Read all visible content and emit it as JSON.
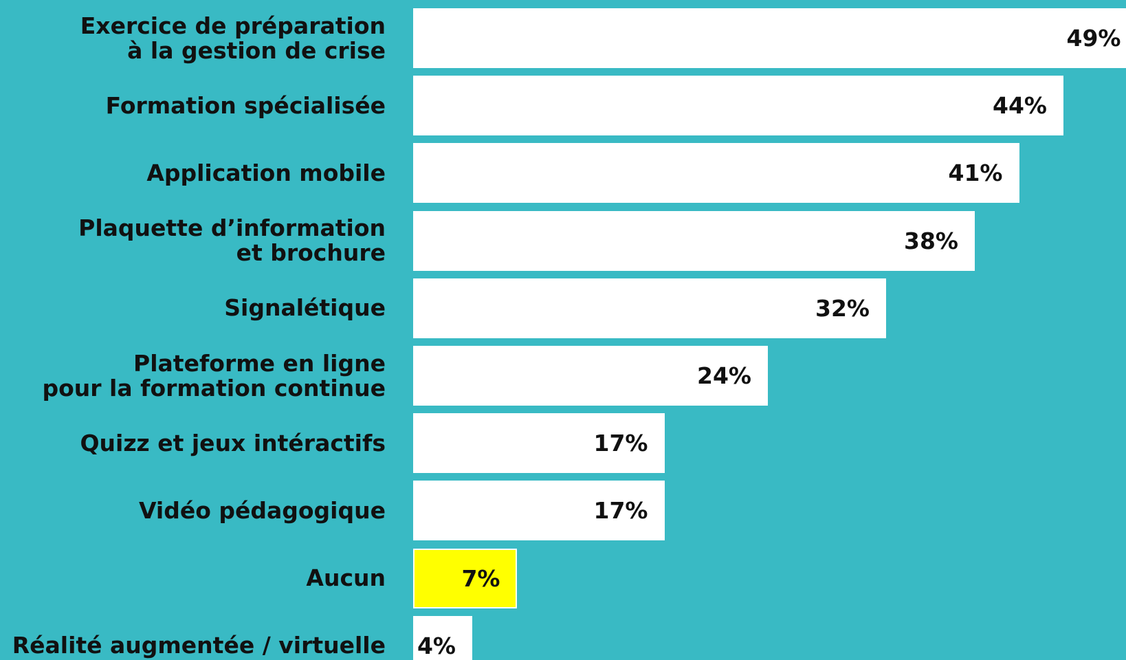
{
  "chart_data": {
    "type": "barh",
    "categories": [
      "Exercice de préparation\nà la gestion de crise",
      "Formation spécialisée",
      "Application mobile",
      "Plaquette d’information\net brochure",
      "Signalétique",
      "Plateforme en ligne\npour la formation continue",
      "Quizz et jeux intéractifs",
      "Vidéo pédagogique",
      "Aucun",
      "Réalité augmentée / virtuelle"
    ],
    "values": [
      49,
      44,
      41,
      38,
      32,
      24,
      17,
      17,
      7,
      4
    ],
    "value_labels": [
      "49%",
      "44%",
      "41%",
      "38%",
      "32%",
      "24%",
      "17%",
      "17%",
      "7%",
      "4%"
    ],
    "colors": [
      "#ffffff",
      "#ffffff",
      "#ffffff",
      "#ffffff",
      "#ffffff",
      "#ffffff",
      "#ffffff",
      "#ffffff",
      "#ffff00",
      "#ffffff"
    ],
    "background": "#39bac4"
  }
}
